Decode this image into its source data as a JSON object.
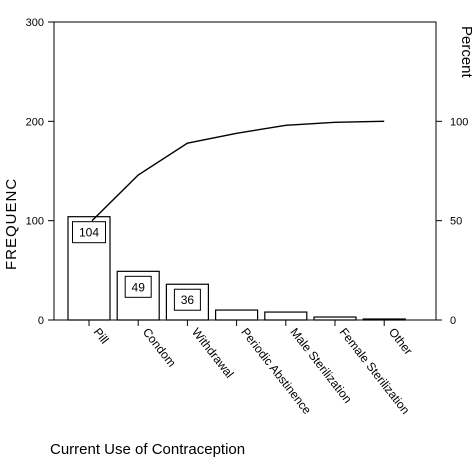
{
  "chart_data": {
    "type": "bar",
    "categories": [
      "Pill",
      "Condom",
      "Withdrawal",
      "Periodic Abstinence",
      "Male Sterilization",
      "Female Sterilization",
      "Other"
    ],
    "series": [
      {
        "type": "bar",
        "axis": "left",
        "values": [
          104,
          49,
          36,
          10,
          8,
          3,
          1
        ]
      },
      {
        "type": "line",
        "axis": "right",
        "values": [
          50,
          73,
          89,
          94,
          98,
          99.5,
          100
        ]
      }
    ],
    "data_labels": [
      "104",
      "49",
      "36"
    ],
    "xlabel": "Current Use of Contraception",
    "ylabel_left": "FREQUENC",
    "ylabel_right": "Percent",
    "ylim_left": [
      0,
      300
    ],
    "yticks_left": [
      "0",
      "100",
      "200",
      "300"
    ],
    "ylim_right": [
      0,
      150
    ],
    "yticks_right": [
      "0",
      "50",
      "100"
    ],
    "grid": false,
    "legend": "none"
  }
}
